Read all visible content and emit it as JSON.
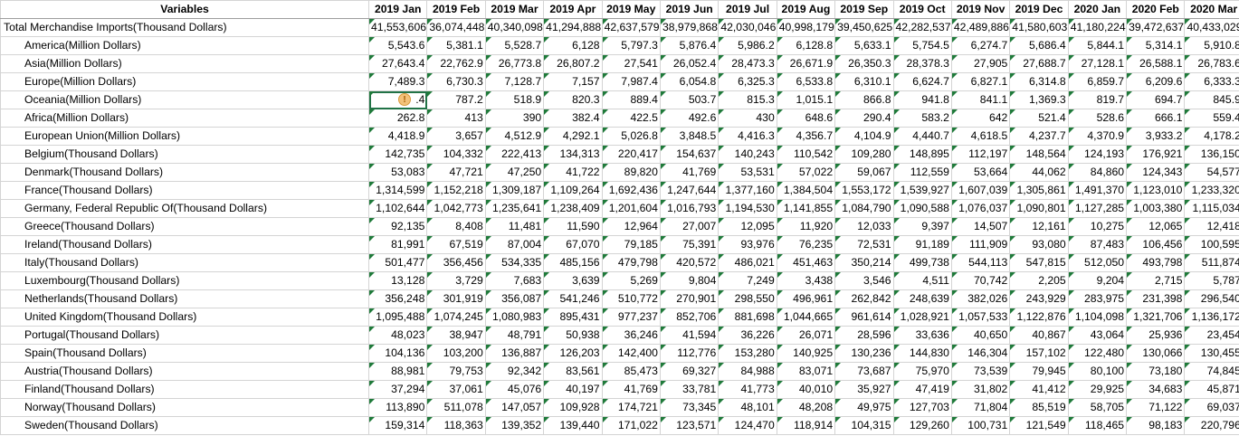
{
  "header": [
    "Variables",
    "2019 Jan",
    "2019 Feb",
    "2019 Mar",
    "2019 Apr",
    "2019 May",
    "2019 Jun",
    "2019 Jul",
    "2019 Aug",
    "2019 Sep",
    "2019 Oct",
    "2019 Nov",
    "2019 Dec",
    "2020 Jan",
    "2020 Feb",
    "2020 Mar"
  ],
  "rows": [
    {
      "label": "Total Merchandise Imports(Thousand Dollars)",
      "indent": false,
      "values": [
        "41,553,606",
        "36,074,448",
        "40,340,098",
        "41,294,888",
        "42,637,579",
        "38,979,868",
        "42,030,046",
        "40,998,179",
        "39,450,625",
        "42,282,537",
        "42,489,886",
        "41,580,603",
        "41,180,224",
        "39,472,637",
        "40,433,029"
      ]
    },
    {
      "label": "America(Million Dollars)",
      "indent": true,
      "values": [
        "5,543.6",
        "5,381.1",
        "5,528.7",
        "6,128",
        "5,797.3",
        "5,876.4",
        "5,986.2",
        "6,128.8",
        "5,633.1",
        "5,754.5",
        "6,274.7",
        "5,686.4",
        "5,844.1",
        "5,314.1",
        "5,910.8"
      ]
    },
    {
      "label": "Asia(Million Dollars)",
      "indent": true,
      "values": [
        "27,643.4",
        "22,762.9",
        "26,773.8",
        "26,807.2",
        "27,541",
        "26,052.4",
        "28,473.3",
        "26,671.9",
        "26,350.3",
        "28,378.3",
        "27,905",
        "27,688.7",
        "27,128.1",
        "26,588.1",
        "26,783.6"
      ]
    },
    {
      "label": "Europe(Million Dollars)",
      "indent": true,
      "values": [
        "7,489.3",
        "6,730.3",
        "7,128.7",
        "7,157",
        "7,987.4",
        "6,054.8",
        "6,325.3",
        "6,533.8",
        "6,310.1",
        "6,624.7",
        "6,827.1",
        "6,314.8",
        "6,859.7",
        "6,209.6",
        "6,333.3"
      ]
    },
    {
      "label": "Oceania(Million Dollars)",
      "indent": true,
      "values": [
        ".4",
        "787.2",
        "518.9",
        "820.3",
        "889.4",
        "503.7",
        "815.3",
        "1,015.1",
        "866.8",
        "941.8",
        "841.1",
        "1,369.3",
        "819.7",
        "694.7",
        "845.9"
      ]
    },
    {
      "label": "Africa(Million Dollars)",
      "indent": true,
      "values": [
        "262.8",
        "413",
        "390",
        "382.4",
        "422.5",
        "492.6",
        "430",
        "648.6",
        "290.4",
        "583.2",
        "642",
        "521.4",
        "528.6",
        "666.1",
        "559.4"
      ]
    },
    {
      "label": "European Union(Million Dollars)",
      "indent": true,
      "values": [
        "4,418.9",
        "3,657",
        "4,512.9",
        "4,292.1",
        "5,026.8",
        "3,848.5",
        "4,416.3",
        "4,356.7",
        "4,104.9",
        "4,440.7",
        "4,618.5",
        "4,237.7",
        "4,370.9",
        "3,933.2",
        "4,178.2"
      ]
    },
    {
      "label": "Belgium(Thousand Dollars)",
      "indent": true,
      "values": [
        "142,735",
        "104,332",
        "222,413",
        "134,313",
        "220,417",
        "154,637",
        "140,243",
        "110,542",
        "109,280",
        "148,895",
        "112,197",
        "148,564",
        "124,193",
        "176,921",
        "136,150"
      ]
    },
    {
      "label": "Denmark(Thousand Dollars)",
      "indent": true,
      "values": [
        "53,083",
        "47,721",
        "47,250",
        "41,722",
        "89,820",
        "41,769",
        "53,531",
        "57,022",
        "59,067",
        "112,559",
        "53,664",
        "44,062",
        "84,860",
        "124,343",
        "54,577"
      ]
    },
    {
      "label": "France(Thousand Dollars)",
      "indent": true,
      "values": [
        "1,314,599",
        "1,152,218",
        "1,309,187",
        "1,109,264",
        "1,692,436",
        "1,247,644",
        "1,377,160",
        "1,384,504",
        "1,553,172",
        "1,539,927",
        "1,607,039",
        "1,305,861",
        "1,491,370",
        "1,123,010",
        "1,233,320"
      ]
    },
    {
      "label": "Germany, Federal Republic Of(Thousand Dollars)",
      "indent": true,
      "values": [
        "1,102,644",
        "1,042,773",
        "1,235,641",
        "1,238,409",
        "1,201,604",
        "1,016,793",
        "1,194,530",
        "1,141,855",
        "1,084,790",
        "1,090,588",
        "1,076,037",
        "1,090,801",
        "1,127,285",
        "1,003,380",
        "1,115,034"
      ]
    },
    {
      "label": "Greece(Thousand Dollars)",
      "indent": true,
      "values": [
        "92,135",
        "8,408",
        "11,481",
        "11,590",
        "12,964",
        "27,007",
        "12,095",
        "11,920",
        "12,033",
        "9,397",
        "14,507",
        "12,161",
        "10,275",
        "12,065",
        "12,418"
      ]
    },
    {
      "label": "Ireland(Thousand Dollars)",
      "indent": true,
      "values": [
        "81,991",
        "67,519",
        "87,004",
        "67,070",
        "79,185",
        "75,391",
        "93,976",
        "76,235",
        "72,531",
        "91,189",
        "111,909",
        "93,080",
        "87,483",
        "106,456",
        "100,595"
      ]
    },
    {
      "label": "Italy(Thousand Dollars)",
      "indent": true,
      "values": [
        "501,477",
        "356,456",
        "534,335",
        "485,156",
        "479,798",
        "420,572",
        "486,021",
        "451,463",
        "350,214",
        "499,738",
        "544,113",
        "547,815",
        "512,050",
        "493,798",
        "511,874"
      ]
    },
    {
      "label": "Luxembourg(Thousand Dollars)",
      "indent": true,
      "values": [
        "13,128",
        "3,729",
        "7,683",
        "3,639",
        "5,269",
        "9,804",
        "7,249",
        "3,438",
        "3,546",
        "4,511",
        "70,742",
        "2,205",
        "9,204",
        "2,715",
        "5,787"
      ]
    },
    {
      "label": "Netherlands(Thousand Dollars)",
      "indent": true,
      "values": [
        "356,248",
        "301,919",
        "356,087",
        "541,246",
        "510,772",
        "270,901",
        "298,550",
        "496,961",
        "262,842",
        "248,639",
        "382,026",
        "243,929",
        "283,975",
        "231,398",
        "296,540"
      ]
    },
    {
      "label": "United Kingdom(Thousand Dollars)",
      "indent": true,
      "values": [
        "1,095,488",
        "1,074,245",
        "1,080,983",
        "895,431",
        "977,237",
        "852,706",
        "881,698",
        "1,044,665",
        "961,614",
        "1,028,921",
        "1,057,533",
        "1,122,876",
        "1,104,098",
        "1,321,706",
        "1,136,172"
      ]
    },
    {
      "label": "Portugal(Thousand Dollars)",
      "indent": true,
      "values": [
        "48,023",
        "38,947",
        "48,791",
        "50,938",
        "36,246",
        "41,594",
        "36,226",
        "26,071",
        "28,596",
        "33,636",
        "40,650",
        "40,867",
        "43,064",
        "25,936",
        "23,454"
      ]
    },
    {
      "label": "Spain(Thousand Dollars)",
      "indent": true,
      "values": [
        "104,136",
        "103,200",
        "136,887",
        "126,203",
        "142,400",
        "112,776",
        "153,280",
        "140,925",
        "130,236",
        "144,830",
        "146,304",
        "157,102",
        "122,480",
        "130,066",
        "130,455"
      ]
    },
    {
      "label": "Austria(Thousand Dollars)",
      "indent": true,
      "values": [
        "88,981",
        "79,753",
        "92,342",
        "83,561",
        "85,473",
        "69,327",
        "84,988",
        "83,071",
        "73,687",
        "75,970",
        "73,539",
        "79,945",
        "80,100",
        "73,180",
        "74,845"
      ]
    },
    {
      "label": "Finland(Thousand Dollars)",
      "indent": true,
      "values": [
        "37,294",
        "37,061",
        "45,076",
        "40,197",
        "41,769",
        "33,781",
        "41,773",
        "40,010",
        "35,927",
        "47,419",
        "31,802",
        "41,412",
        "29,925",
        "34,683",
        "45,871"
      ]
    },
    {
      "label": "Norway(Thousand Dollars)",
      "indent": true,
      "values": [
        "113,890",
        "511,078",
        "147,057",
        "109,928",
        "174,721",
        "73,345",
        "48,101",
        "48,208",
        "49,975",
        "127,703",
        "71,804",
        "85,519",
        "58,705",
        "71,122",
        "69,037"
      ]
    },
    {
      "label": "Sweden(Thousand Dollars)",
      "indent": true,
      "values": [
        "159,314",
        "118,363",
        "139,352",
        "139,440",
        "171,022",
        "123,571",
        "124,470",
        "118,914",
        "104,315",
        "129,260",
        "100,731",
        "121,549",
        "118,465",
        "98,183",
        "220,796"
      ]
    }
  ],
  "warning_icon": "error-warning-icon",
  "selected_cell": {
    "row": 4,
    "col": 1
  },
  "colors": {
    "gridline": "#d4d4d4",
    "error_triangle": "#1f7a3a",
    "selection": "#217346",
    "warning": "#f4c27a"
  }
}
